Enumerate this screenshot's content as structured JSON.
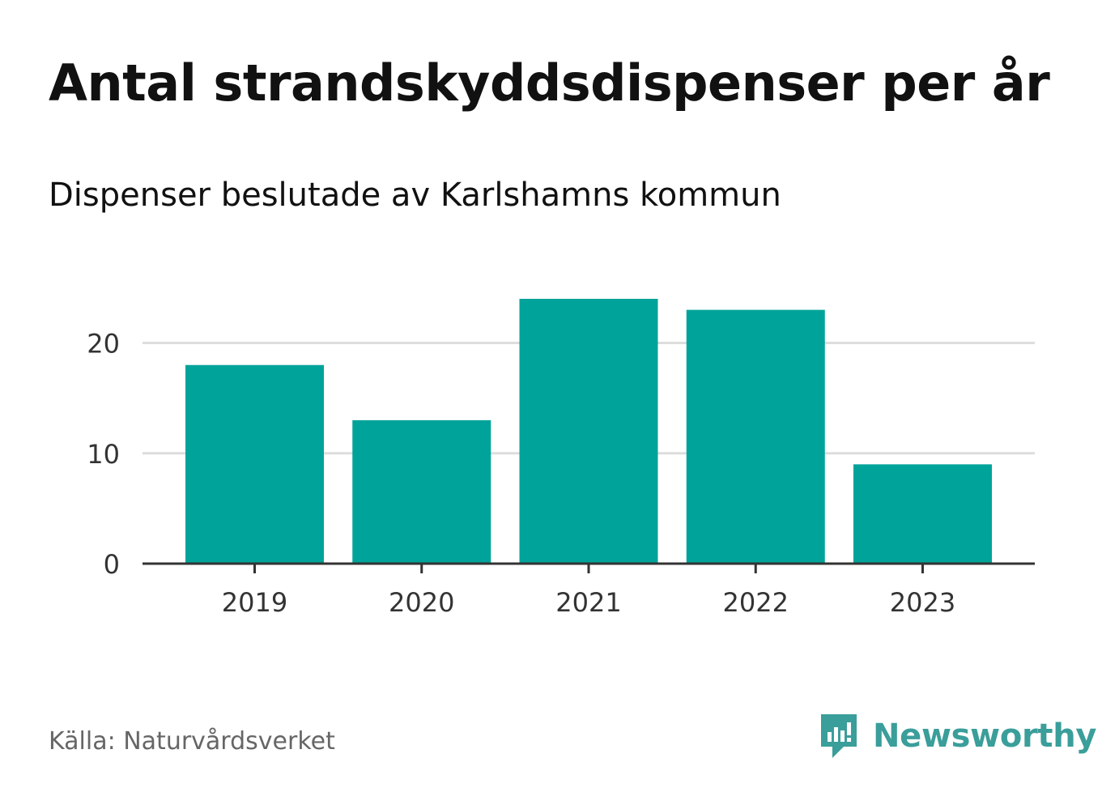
{
  "chart_data": {
    "type": "bar",
    "title": "Antal strandskyddsdispenser per år",
    "subtitle": "Dispenser beslutade av Karlshamns kommun",
    "categories": [
      "2019",
      "2020",
      "2021",
      "2022",
      "2023"
    ],
    "values": [
      18,
      13,
      24,
      23,
      9
    ],
    "xlabel": "",
    "ylabel": "",
    "ylim": [
      0,
      24
    ],
    "yticks": [
      0,
      10,
      20
    ],
    "grid": true,
    "legend": "none",
    "bar_color": "#00a39a"
  },
  "source": "Källa: Naturvårdsverket",
  "brand": {
    "name": "Newsworthy",
    "icon": "bar-chart-speech-bubble-icon",
    "color": "#3a9e9a"
  }
}
